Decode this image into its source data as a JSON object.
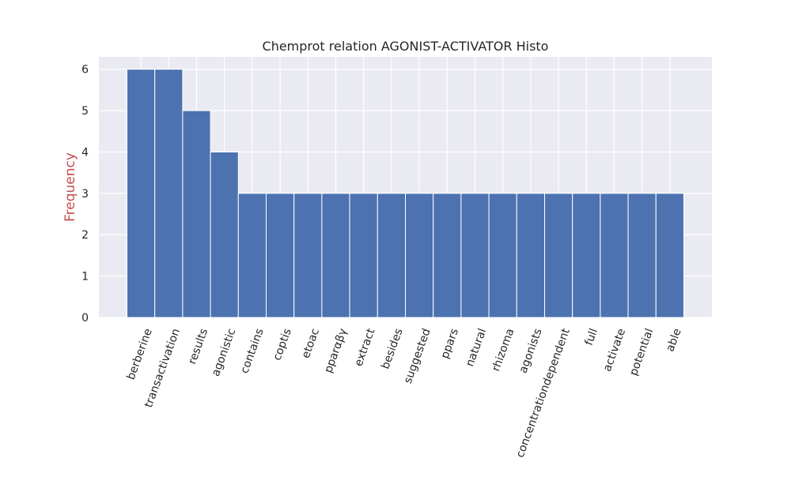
{
  "chart_data": {
    "type": "bar",
    "title": "Chemprot relation AGONIST-ACTIVATOR Histo",
    "xlabel": "",
    "ylabel": "Frequency",
    "categories": [
      "berberine",
      "transactivation",
      "results",
      "agonistic",
      "contains",
      "coptis",
      "etoac",
      "pparαβγ",
      "extract",
      "besides",
      "suggested",
      "ppars",
      "natural",
      "rhizoma",
      "agonists",
      "concentrationdependent",
      "full",
      "activate",
      "potential",
      "able"
    ],
    "values": [
      6,
      6,
      5,
      4,
      3,
      3,
      3,
      3,
      3,
      3,
      3,
      3,
      3,
      3,
      3,
      3,
      3,
      3,
      3,
      3
    ],
    "ylim": [
      0,
      6.3
    ],
    "yticks": [
      0,
      1,
      2,
      3,
      4,
      5,
      6
    ],
    "grid": true,
    "legend": "none",
    "colors": {
      "bar": "#4c72b0",
      "plot_bg": "#eaeaf2",
      "grid": "#ffffff",
      "ylabel": "#c44e52",
      "text": "#262626"
    }
  }
}
